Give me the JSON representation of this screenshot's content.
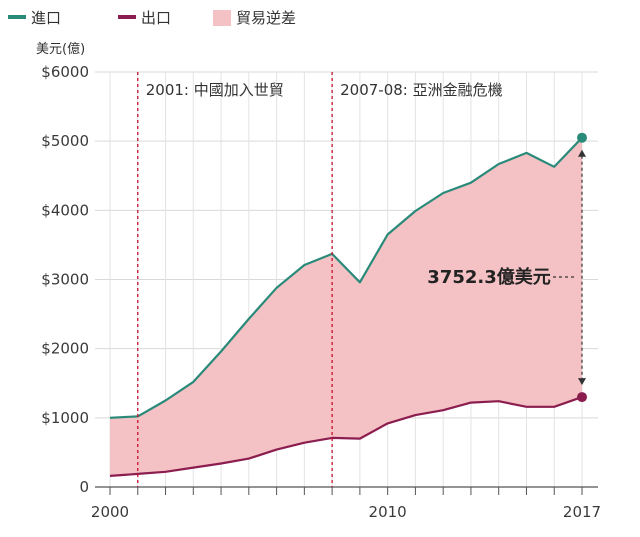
{
  "chart_data": {
    "type": "area",
    "unit_label": "美元(億)",
    "x": [
      2000,
      2001,
      2002,
      2003,
      2004,
      2005,
      2006,
      2007,
      2008,
      2009,
      2010,
      2011,
      2012,
      2013,
      2014,
      2015,
      2016,
      2017
    ],
    "series": [
      {
        "name": "進口",
        "color": "#2a8a7a",
        "values": [
          1000,
          1020,
          1250,
          1520,
          1960,
          2430,
          2880,
          3210,
          3370,
          2960,
          3650,
          3990,
          4250,
          4400,
          4670,
          4830,
          4630,
          5050
        ]
      },
      {
        "name": "出口",
        "color": "#8b1d4f",
        "values": [
          160,
          190,
          220,
          280,
          340,
          410,
          540,
          640,
          710,
          700,
          920,
          1040,
          1110,
          1220,
          1240,
          1160,
          1160,
          1300
        ]
      }
    ],
    "fill_series": {
      "name": "貿易逆差",
      "color": "#f4c2c4"
    },
    "ylim": [
      0,
      6000
    ],
    "y_ticks": [
      "$6000",
      "$5000",
      "$4000",
      "$3000",
      "$2000",
      "$1000",
      "0"
    ],
    "y_tick_values": [
      6000,
      5000,
      4000,
      3000,
      2000,
      1000,
      0
    ],
    "x_tick_labels": [
      {
        "value": 2000,
        "label": "2000"
      },
      {
        "value": 2010,
        "label": "2010"
      },
      {
        "value": 2017,
        "label": "2017"
      }
    ],
    "events": [
      {
        "x": 2001,
        "label": "2001: 中國加入世貿"
      },
      {
        "x": 2008,
        "label": "2007-08: 亞洲金融危機"
      }
    ],
    "gap_annotation": {
      "x": 2017,
      "label": "3752.3億美元"
    },
    "legend_position": "top-left",
    "grid": true
  }
}
